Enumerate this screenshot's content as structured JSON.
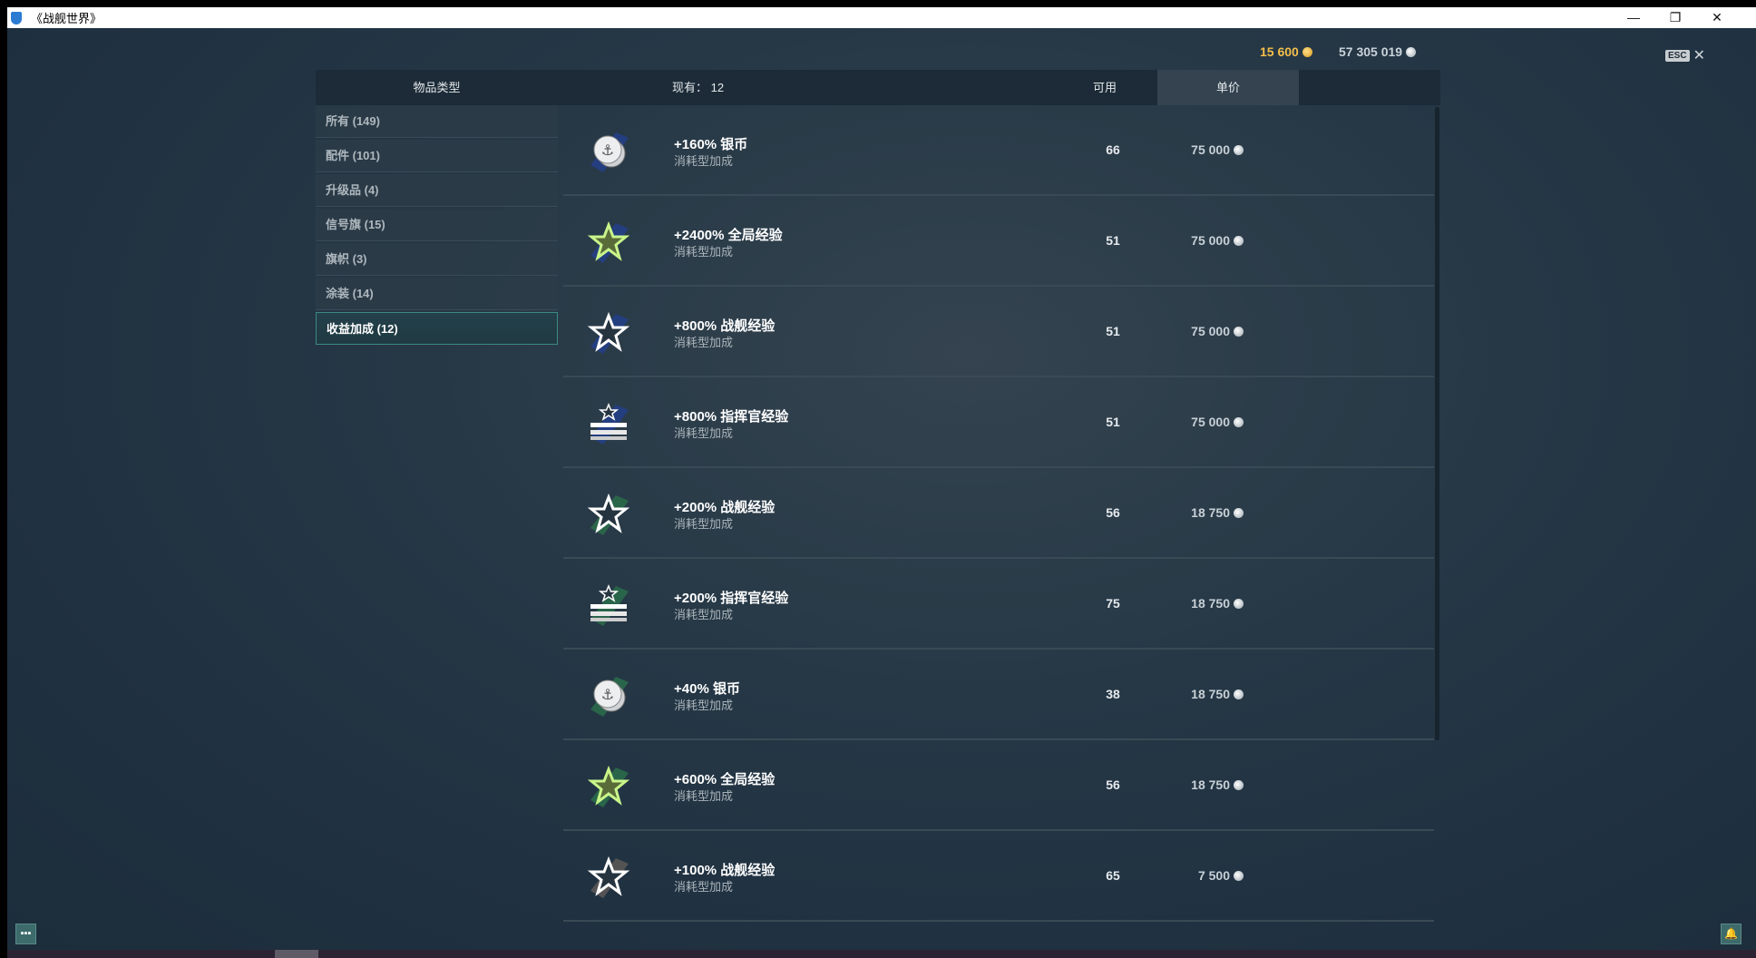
{
  "window": {
    "title": "《战舰世界》",
    "minimize": "—",
    "restore": "❐",
    "close": "✕"
  },
  "currency": {
    "gold": "15 600",
    "silver": "57 305 019",
    "gold_color": "#f5bf4a"
  },
  "esc": {
    "key": "ESC",
    "close": "✕"
  },
  "header": {
    "type": "物品类型",
    "have": "现有： 12",
    "available": "可用",
    "price": "单价"
  },
  "categories": [
    {
      "label": "所有 (149)"
    },
    {
      "label": "配件 (101)"
    },
    {
      "label": "升级品 (4)"
    },
    {
      "label": "信号旗 (15)"
    },
    {
      "label": "旗帜 (3)"
    },
    {
      "label": "涂装 (14)"
    },
    {
      "label": "收益加成 (12)",
      "active": true
    }
  ],
  "items": [
    {
      "name": "+160% 银币",
      "sub": "消耗型加成",
      "available": "66",
      "price": "75 000",
      "icon": "silver-coin-icon",
      "swatch": "#233f86"
    },
    {
      "name": "+2400% 全局经验",
      "sub": "消耗型加成",
      "available": "51",
      "price": "75 000",
      "icon": "free-xp-star-icon",
      "swatch": "#233f86"
    },
    {
      "name": "+800% 战舰经验",
      "sub": "消耗型加成",
      "available": "51",
      "price": "75 000",
      "icon": "ship-xp-star-icon",
      "swatch": "#233f86"
    },
    {
      "name": "+800% 指挥官经验",
      "sub": "消耗型加成",
      "available": "51",
      "price": "75 000",
      "icon": "commander-xp-icon",
      "swatch": "#233f86"
    },
    {
      "name": "+200% 战舰经验",
      "sub": "消耗型加成",
      "available": "56",
      "price": "18 750",
      "icon": "ship-xp-star-icon",
      "swatch": "#2a6a4a"
    },
    {
      "name": "+200% 指挥官经验",
      "sub": "消耗型加成",
      "available": "75",
      "price": "18 750",
      "icon": "commander-xp-icon",
      "swatch": "#2a6a4a"
    },
    {
      "name": "+40% 银币",
      "sub": "消耗型加成",
      "available": "38",
      "price": "18 750",
      "icon": "silver-coin-icon",
      "swatch": "#2a6a4a"
    },
    {
      "name": "+600% 全局经验",
      "sub": "消耗型加成",
      "available": "56",
      "price": "18 750",
      "icon": "free-xp-star-icon",
      "swatch": "#2a6a4a"
    },
    {
      "name": "+100% 战舰经验",
      "sub": "消耗型加成",
      "available": "65",
      "price": "7 500",
      "icon": "ship-xp-star-icon",
      "swatch": "#5a5656"
    }
  ]
}
